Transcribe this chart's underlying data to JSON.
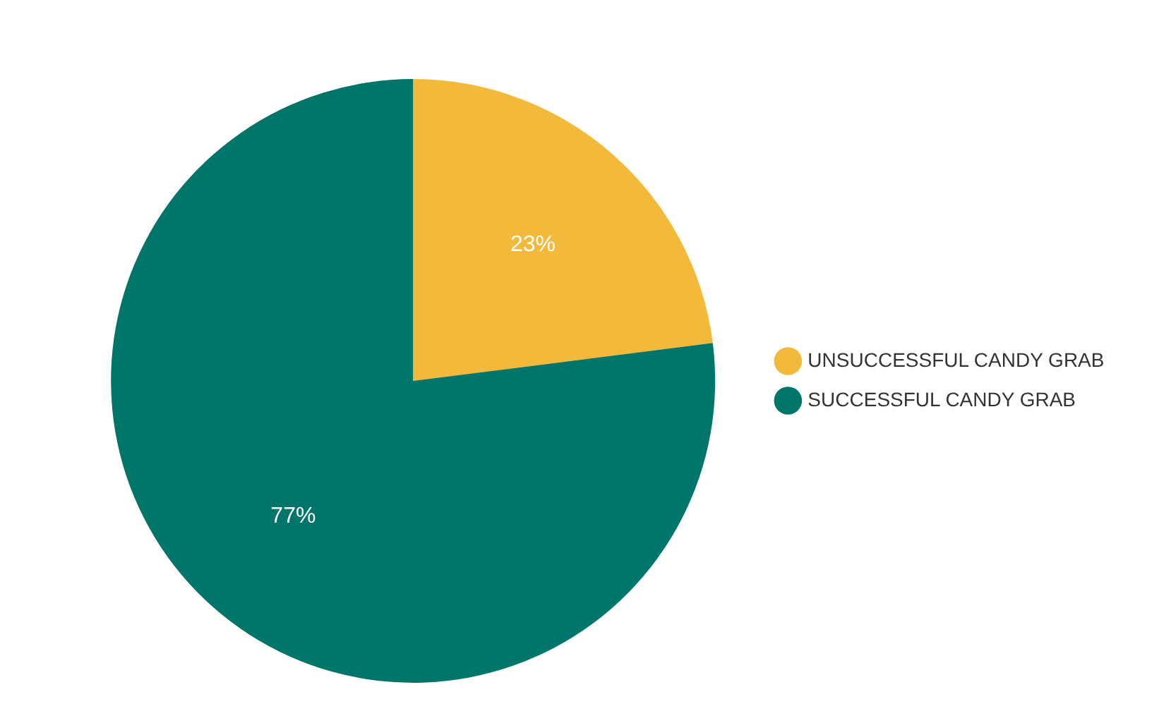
{
  "chart_data": {
    "type": "pie",
    "categories": [
      "UNSUCCESSFUL CANDY GRAB",
      "SUCCESSFUL CANDY GRAB"
    ],
    "values": [
      23,
      77
    ],
    "colors": [
      "#f2b93b",
      "#00756a"
    ],
    "value_labels": [
      "23%",
      "77%"
    ],
    "legend": "right"
  }
}
